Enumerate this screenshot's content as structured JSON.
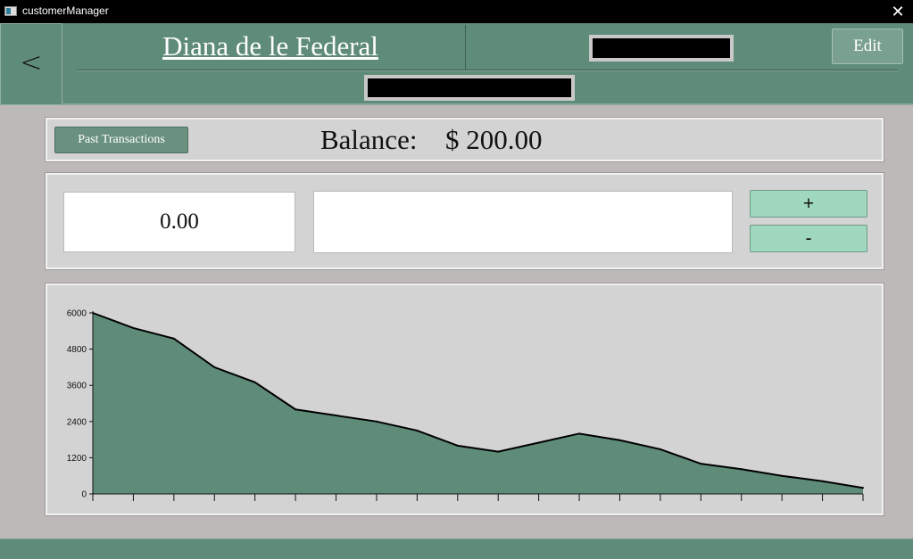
{
  "window": {
    "title": "customerManager",
    "close_glyph": "✕"
  },
  "header": {
    "back_label": "<",
    "customer_name": "Diana de le Federal",
    "edit_label": "Edit"
  },
  "balance_panel": {
    "past_transactions_label": "Past Transactions",
    "balance_label": "Balance:",
    "balance_value": "$ 200.00"
  },
  "entry_panel": {
    "amount_value": "0.00",
    "memo_value": "",
    "plus_label": "+",
    "minus_label": "-"
  },
  "colors": {
    "header_green": "#5f8b79",
    "chart_fill": "#5f8b79",
    "button_mint": "#9fd7bf",
    "background": "#bdb9b9"
  },
  "chart_data": {
    "type": "area",
    "x": [
      0,
      1,
      2,
      3,
      4,
      5,
      6,
      7,
      8,
      9,
      10,
      11,
      12,
      13,
      14,
      15,
      16,
      17,
      18,
      19
    ],
    "values": [
      6000,
      5500,
      5150,
      4200,
      3700,
      2800,
      2600,
      2400,
      2100,
      1600,
      1400,
      1700,
      2000,
      1780,
      1480,
      1000,
      820,
      600,
      420,
      200
    ],
    "yticks": [
      "0",
      "1200",
      "2400",
      "3600",
      "4800",
      "6000"
    ],
    "ylim": [
      0,
      6000
    ],
    "title": "",
    "xlabel": "",
    "ylabel": "",
    "grid": false,
    "fill_color": "#5f8b79",
    "line_color": "#000000"
  }
}
